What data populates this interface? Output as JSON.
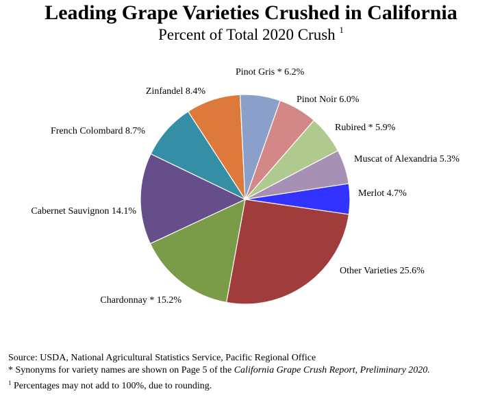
{
  "chart_data": {
    "type": "pie",
    "title": "Leading Grape Varieties Crushed in California",
    "subtitle": "Percent of Total 2020 Crush",
    "subtitle_note_mark": "1",
    "slices": [
      {
        "label": "Pinot Noir",
        "marker": "",
        "value": 6.0,
        "value_label": "6.0%",
        "color": "#d48787"
      },
      {
        "label": "Rubired",
        "marker": "*",
        "value": 5.9,
        "value_label": "5.9%",
        "color": "#b0c98e"
      },
      {
        "label": "Muscat of Alexandria",
        "marker": "",
        "value": 5.3,
        "value_label": "5.3%",
        "color": "#a691b4"
      },
      {
        "label": "Merlot",
        "marker": "",
        "value": 4.7,
        "value_label": "4.7%",
        "color": "#3333ff"
      },
      {
        "label": "Other Varieties",
        "marker": "",
        "value": 25.6,
        "value_label": "25.6%",
        "color": "#a03c3c"
      },
      {
        "label": "Chardonnay",
        "marker": "*",
        "value": 15.2,
        "value_label": "15.2%",
        "color": "#7a9c48"
      },
      {
        "label": "Cabernet Sauvignon",
        "marker": "",
        "value": 14.1,
        "value_label": "14.1%",
        "color": "#654e89"
      },
      {
        "label": "French Colombard",
        "marker": "",
        "value": 8.7,
        "value_label": "8.7%",
        "color": "#348ea6"
      },
      {
        "label": "Zinfandel",
        "marker": "",
        "value": 8.4,
        "value_label": "8.4%",
        "color": "#dd7a3b"
      },
      {
        "label": "Pinot Gris",
        "marker": "*",
        "value": 6.2,
        "value_label": "6.2%",
        "color": "#8aa0cb"
      }
    ]
  },
  "footer": {
    "source": "Source: USDA, National Agricultural Statistics Service, Pacific  Regional  Office",
    "synonyms_prefix": "* Synonyms for variety names are shown on Page 5 of the ",
    "synonyms_report": "California Grape Crush Report, Preliminary 2020.",
    "rounding_mark": "1",
    "rounding_text": " Percentages may not add to 100%, due to rounding."
  }
}
